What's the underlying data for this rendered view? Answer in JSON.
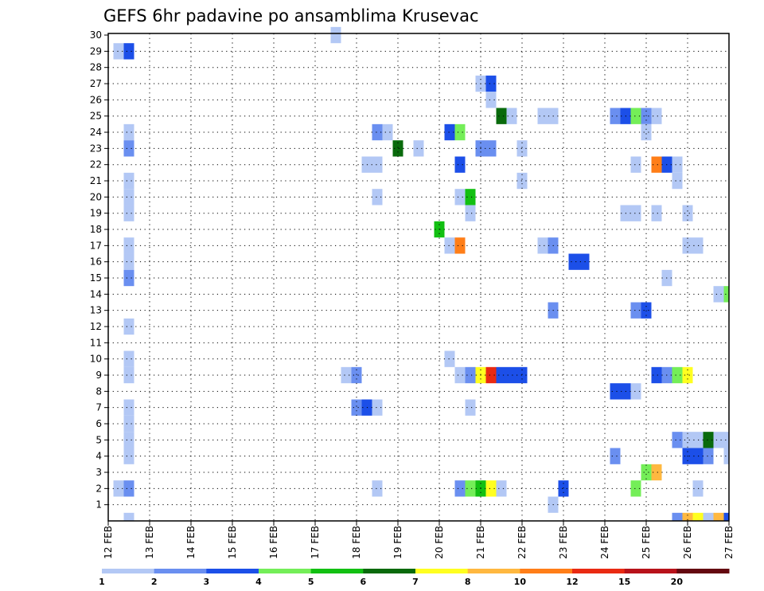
{
  "chart_data": {
    "type": "heatmap",
    "title": "GEFS 6hr padavine po ansamblima Krusevac",
    "xlabel": "",
    "ylabel": "",
    "x_tick_labels": [
      "12 FEB",
      "13 FEB",
      "14 FEB",
      "15 FEB",
      "16 FEB",
      "17 FEB",
      "18 FEB",
      "19 FEB",
      "20 FEB",
      "21 FEB",
      "22 FEB",
      "23 FEB",
      "24 FEB",
      "25 FEB",
      "26 FEB",
      "27 FEB"
    ],
    "y_tick_labels": [
      "1",
      "2",
      "3",
      "4",
      "5",
      "6",
      "7",
      "8",
      "9",
      "10",
      "11",
      "12",
      "13",
      "14",
      "15",
      "16",
      "17",
      "18",
      "19",
      "20",
      "21",
      "22",
      "23",
      "24",
      "25",
      "26",
      "27",
      "28",
      "29",
      "30"
    ],
    "xlim_days": [
      12,
      27
    ],
    "ylim": [
      0,
      30
    ],
    "time_step_hours": 6,
    "grid": true,
    "legend_placement": "bottom",
    "colorbar": {
      "labels": [
        "1",
        "2",
        "3",
        "4",
        "5",
        "6",
        "7",
        "8",
        "10",
        "12",
        "15",
        "20"
      ],
      "colors": [
        "#b3c8f5",
        "#6a8ff0",
        "#1c4fe8",
        "#74ee58",
        "#12c012",
        "#096a0c",
        "#ffff20",
        "#ffb840",
        "#ff7e18",
        "#e92a12",
        "#b8121a",
        "#640810"
      ]
    },
    "cells": [
      {
        "d": 12.25,
        "y": 29,
        "c": 1
      },
      {
        "d": 12.5,
        "y": 29,
        "c": 3
      },
      {
        "d": 12.5,
        "y": 24,
        "c": 1
      },
      {
        "d": 12.5,
        "y": 23,
        "c": 2
      },
      {
        "d": 12.5,
        "y": 21,
        "c": 1
      },
      {
        "d": 12.5,
        "y": 20,
        "c": 1
      },
      {
        "d": 12.5,
        "y": 19,
        "c": 1
      },
      {
        "d": 12.5,
        "y": 17,
        "c": 1
      },
      {
        "d": 12.5,
        "y": 16,
        "c": 1
      },
      {
        "d": 12.5,
        "y": 15,
        "c": 2
      },
      {
        "d": 12.5,
        "y": 12,
        "c": 1
      },
      {
        "d": 12.5,
        "y": 10,
        "c": 1
      },
      {
        "d": 12.5,
        "y": 9,
        "c": 1
      },
      {
        "d": 12.5,
        "y": 7,
        "c": 1
      },
      {
        "d": 12.5,
        "y": 6,
        "c": 1
      },
      {
        "d": 12.5,
        "y": 5,
        "c": 1
      },
      {
        "d": 12.5,
        "y": 4,
        "c": 1
      },
      {
        "d": 12.25,
        "y": 2,
        "c": 1
      },
      {
        "d": 12.5,
        "y": 2,
        "c": 2
      },
      {
        "d": 12.5,
        "y": 0,
        "c": 1
      },
      {
        "d": 17.5,
        "y": 30,
        "c": 1
      },
      {
        "d": 17.75,
        "y": 9,
        "c": 1
      },
      {
        "d": 18.0,
        "y": 9,
        "c": 2
      },
      {
        "d": 18.0,
        "y": 7,
        "c": 2
      },
      {
        "d": 18.25,
        "y": 7,
        "c": 3
      },
      {
        "d": 18.5,
        "y": 7,
        "c": 1
      },
      {
        "d": 18.25,
        "y": 22,
        "c": 1
      },
      {
        "d": 18.5,
        "y": 22,
        "c": 1
      },
      {
        "d": 18.5,
        "y": 24,
        "c": 2
      },
      {
        "d": 18.75,
        "y": 24,
        "c": 1
      },
      {
        "d": 18.5,
        "y": 20,
        "c": 1
      },
      {
        "d": 18.5,
        "y": 2,
        "c": 1
      },
      {
        "d": 19.0,
        "y": 23,
        "c": 6
      },
      {
        "d": 19.5,
        "y": 23,
        "c": 1
      },
      {
        "d": 20.0,
        "y": 18,
        "c": 5
      },
      {
        "d": 20.25,
        "y": 24,
        "c": 3
      },
      {
        "d": 20.5,
        "y": 24,
        "c": 4
      },
      {
        "d": 20.5,
        "y": 22,
        "c": 3
      },
      {
        "d": 20.5,
        "y": 20,
        "c": 1
      },
      {
        "d": 20.75,
        "y": 20,
        "c": 5
      },
      {
        "d": 20.75,
        "y": 19,
        "c": 1
      },
      {
        "d": 20.25,
        "y": 17,
        "c": 1
      },
      {
        "d": 20.5,
        "y": 17,
        "c": 9
      },
      {
        "d": 20.25,
        "y": 10,
        "c": 1
      },
      {
        "d": 20.5,
        "y": 9,
        "c": 1
      },
      {
        "d": 20.75,
        "y": 9,
        "c": 2
      },
      {
        "d": 21.0,
        "y": 9,
        "c": 7
      },
      {
        "d": 21.25,
        "y": 9,
        "c": 10
      },
      {
        "d": 21.5,
        "y": 9,
        "c": 3
      },
      {
        "d": 21.75,
        "y": 9,
        "c": 3
      },
      {
        "d": 22.0,
        "y": 9,
        "c": 3
      },
      {
        "d": 20.75,
        "y": 7,
        "c": 1
      },
      {
        "d": 20.5,
        "y": 2,
        "c": 2
      },
      {
        "d": 20.75,
        "y": 2,
        "c": 4
      },
      {
        "d": 21.0,
        "y": 2,
        "c": 5
      },
      {
        "d": 21.25,
        "y": 2,
        "c": 7
      },
      {
        "d": 21.5,
        "y": 2,
        "c": 1
      },
      {
        "d": 21.0,
        "y": 27,
        "c": 1
      },
      {
        "d": 21.25,
        "y": 27,
        "c": 3
      },
      {
        "d": 21.25,
        "y": 26,
        "c": 1
      },
      {
        "d": 21.5,
        "y": 25,
        "c": 6
      },
      {
        "d": 21.75,
        "y": 25,
        "c": 1
      },
      {
        "d": 21.0,
        "y": 23,
        "c": 2
      },
      {
        "d": 21.25,
        "y": 23,
        "c": 2
      },
      {
        "d": 22.0,
        "y": 23,
        "c": 1
      },
      {
        "d": 22.0,
        "y": 21,
        "c": 1
      },
      {
        "d": 22.5,
        "y": 25,
        "c": 1
      },
      {
        "d": 22.75,
        "y": 25,
        "c": 1
      },
      {
        "d": 22.5,
        "y": 17,
        "c": 1
      },
      {
        "d": 22.75,
        "y": 17,
        "c": 2
      },
      {
        "d": 22.75,
        "y": 13,
        "c": 2
      },
      {
        "d": 22.75,
        "y": 1,
        "c": 1
      },
      {
        "d": 23.0,
        "y": 2,
        "c": 3
      },
      {
        "d": 23.25,
        "y": 16,
        "c": 3
      },
      {
        "d": 23.5,
        "y": 16,
        "c": 3
      },
      {
        "d": 24.25,
        "y": 25,
        "c": 2
      },
      {
        "d": 24.5,
        "y": 25,
        "c": 3
      },
      {
        "d": 24.75,
        "y": 25,
        "c": 4
      },
      {
        "d": 25.0,
        "y": 25,
        "c": 2
      },
      {
        "d": 25.25,
        "y": 25,
        "c": 1
      },
      {
        "d": 25.0,
        "y": 24,
        "c": 1
      },
      {
        "d": 24.75,
        "y": 22,
        "c": 1
      },
      {
        "d": 25.25,
        "y": 22,
        "c": 9
      },
      {
        "d": 25.5,
        "y": 22,
        "c": 3
      },
      {
        "d": 25.75,
        "y": 22,
        "c": 1
      },
      {
        "d": 25.75,
        "y": 21,
        "c": 1
      },
      {
        "d": 24.5,
        "y": 19,
        "c": 1
      },
      {
        "d": 24.75,
        "y": 19,
        "c": 1
      },
      {
        "d": 25.25,
        "y": 19,
        "c": 1
      },
      {
        "d": 26.0,
        "y": 19,
        "c": 1
      },
      {
        "d": 26.0,
        "y": 17,
        "c": 1
      },
      {
        "d": 26.25,
        "y": 17,
        "c": 1
      },
      {
        "d": 25.5,
        "y": 15,
        "c": 1
      },
      {
        "d": 26.75,
        "y": 14,
        "c": 1
      },
      {
        "d": 27.0,
        "y": 14,
        "c": 4
      },
      {
        "d": 24.75,
        "y": 13,
        "c": 2
      },
      {
        "d": 25.0,
        "y": 13,
        "c": 3
      },
      {
        "d": 25.25,
        "y": 9,
        "c": 3
      },
      {
        "d": 25.5,
        "y": 9,
        "c": 2
      },
      {
        "d": 25.75,
        "y": 9,
        "c": 4
      },
      {
        "d": 26.0,
        "y": 9,
        "c": 7
      },
      {
        "d": 24.25,
        "y": 8,
        "c": 3
      },
      {
        "d": 24.5,
        "y": 8,
        "c": 3
      },
      {
        "d": 24.75,
        "y": 8,
        "c": 1
      },
      {
        "d": 25.75,
        "y": 5,
        "c": 2
      },
      {
        "d": 26.0,
        "y": 5,
        "c": 1
      },
      {
        "d": 26.25,
        "y": 5,
        "c": 1
      },
      {
        "d": 26.5,
        "y": 5,
        "c": 6
      },
      {
        "d": 26.75,
        "y": 5,
        "c": 1
      },
      {
        "d": 27.0,
        "y": 5,
        "c": 1
      },
      {
        "d": 24.25,
        "y": 4,
        "c": 2
      },
      {
        "d": 26.0,
        "y": 4,
        "c": 3
      },
      {
        "d": 26.25,
        "y": 4,
        "c": 3
      },
      {
        "d": 26.5,
        "y": 4,
        "c": 2
      },
      {
        "d": 27.0,
        "y": 4,
        "c": 1
      },
      {
        "d": 25.0,
        "y": 3,
        "c": 4
      },
      {
        "d": 25.25,
        "y": 3,
        "c": 8
      },
      {
        "d": 24.75,
        "y": 2,
        "c": 4
      },
      {
        "d": 26.25,
        "y": 2,
        "c": 1
      },
      {
        "d": 25.75,
        "y": 0,
        "c": 2
      },
      {
        "d": 26.0,
        "y": 0,
        "c": 8
      },
      {
        "d": 26.25,
        "y": 0,
        "c": 7
      },
      {
        "d": 26.5,
        "y": 0,
        "c": 1
      },
      {
        "d": 26.75,
        "y": 0,
        "c": 8
      },
      {
        "d": 27.0,
        "y": 0,
        "c": 3
      }
    ]
  }
}
